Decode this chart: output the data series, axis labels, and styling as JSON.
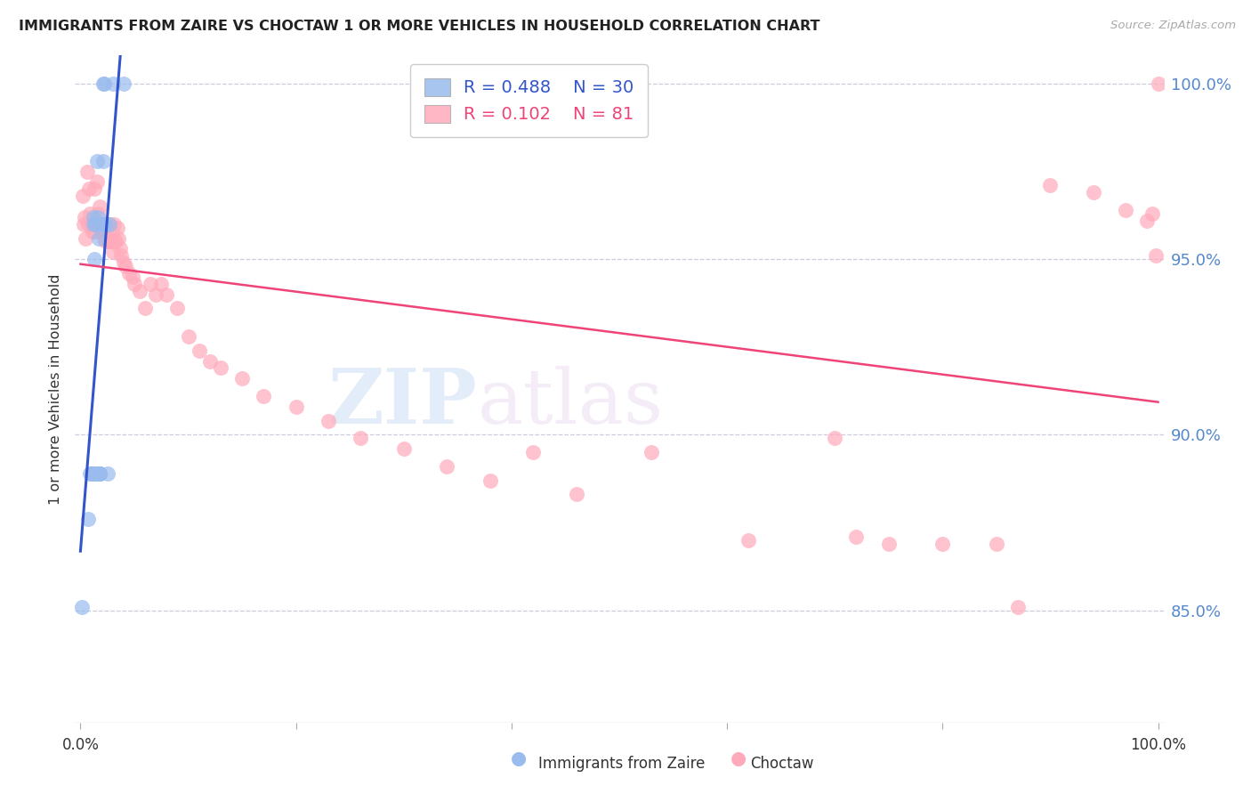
{
  "title": "IMMIGRANTS FROM ZAIRE VS CHOCTAW 1 OR MORE VEHICLES IN HOUSEHOLD CORRELATION CHART",
  "source": "Source: ZipAtlas.com",
  "ylabel": "1 or more Vehicles in Household",
  "legend_label1": "Immigrants from Zaire",
  "legend_label2": "Choctaw",
  "r_blue": 0.488,
  "n_blue": 30,
  "r_pink": 0.102,
  "n_pink": 81,
  "x_min": 0.0,
  "x_max": 1.0,
  "y_min": 0.818,
  "y_max": 1.008,
  "yticks": [
    0.85,
    0.9,
    0.95,
    1.0
  ],
  "ytick_labels": [
    "85.0%",
    "90.0%",
    "95.0%",
    "100.0%"
  ],
  "blue_color": "#99BBEE",
  "pink_color": "#FFAABB",
  "blue_line_color": "#3355CC",
  "pink_line_color": "#EE4477",
  "blue_x": [
    0.001,
    0.007,
    0.009,
    0.01,
    0.01,
    0.011,
    0.011,
    0.012,
    0.012,
    0.013,
    0.013,
    0.014,
    0.015,
    0.016,
    0.016,
    0.017,
    0.017,
    0.018,
    0.018,
    0.018,
    0.02,
    0.02,
    0.021,
    0.021,
    0.022,
    0.023,
    0.025,
    0.027,
    0.03,
    0.04
  ],
  "blue_y": [
    0.851,
    0.876,
    0.889,
    0.889,
    0.889,
    0.889,
    0.889,
    0.96,
    0.962,
    0.95,
    0.889,
    0.96,
    0.978,
    0.962,
    0.889,
    0.889,
    0.956,
    0.889,
    0.889,
    0.889,
    0.96,
    0.96,
    0.978,
    1.0,
    1.0,
    0.96,
    0.889,
    0.96,
    1.0,
    1.0
  ],
  "pink_x": [
    0.002,
    0.003,
    0.004,
    0.005,
    0.006,
    0.007,
    0.008,
    0.009,
    0.01,
    0.011,
    0.012,
    0.013,
    0.013,
    0.014,
    0.015,
    0.016,
    0.017,
    0.018,
    0.019,
    0.02,
    0.021,
    0.021,
    0.022,
    0.023,
    0.024,
    0.025,
    0.025,
    0.026,
    0.027,
    0.027,
    0.028,
    0.029,
    0.03,
    0.031,
    0.032,
    0.033,
    0.034,
    0.035,
    0.037,
    0.038,
    0.04,
    0.042,
    0.045,
    0.048,
    0.05,
    0.055,
    0.06,
    0.065,
    0.07,
    0.075,
    0.08,
    0.09,
    0.1,
    0.11,
    0.12,
    0.13,
    0.15,
    0.17,
    0.2,
    0.23,
    0.26,
    0.3,
    0.34,
    0.38,
    0.42,
    0.46,
    0.53,
    0.62,
    0.7,
    0.72,
    0.75,
    0.8,
    0.85,
    0.87,
    0.9,
    0.94,
    0.97,
    0.99,
    0.995,
    0.998,
    1.0
  ],
  "pink_y": [
    0.968,
    0.96,
    0.962,
    0.956,
    0.975,
    0.96,
    0.97,
    0.963,
    0.96,
    0.958,
    0.958,
    0.96,
    0.97,
    0.96,
    0.972,
    0.963,
    0.96,
    0.965,
    0.958,
    0.958,
    0.958,
    0.96,
    0.956,
    0.96,
    0.955,
    0.96,
    0.956,
    0.955,
    0.96,
    0.955,
    0.955,
    0.958,
    0.952,
    0.96,
    0.955,
    0.955,
    0.959,
    0.956,
    0.953,
    0.951,
    0.949,
    0.948,
    0.946,
    0.945,
    0.943,
    0.941,
    0.936,
    0.943,
    0.94,
    0.943,
    0.94,
    0.936,
    0.928,
    0.924,
    0.921,
    0.919,
    0.916,
    0.911,
    0.908,
    0.904,
    0.899,
    0.896,
    0.891,
    0.887,
    0.895,
    0.883,
    0.895,
    0.87,
    0.899,
    0.871,
    0.869,
    0.869,
    0.869,
    0.851,
    0.971,
    0.969,
    0.964,
    0.961,
    0.963,
    0.951,
    1.0
  ]
}
